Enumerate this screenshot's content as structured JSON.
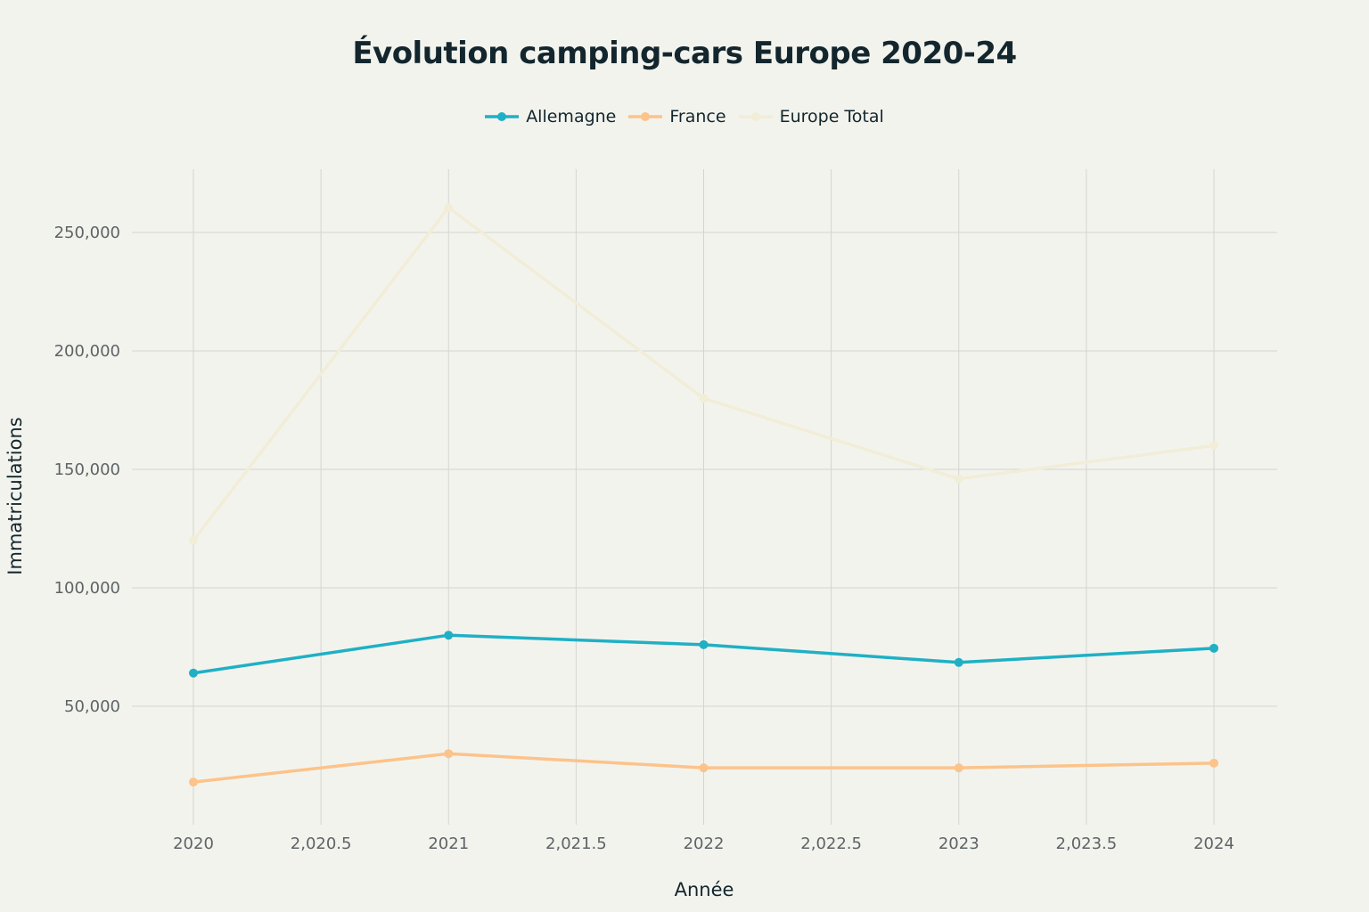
{
  "chart_data": {
    "type": "line",
    "title": "Évolution camping-cars Europe 2020-24",
    "xlabel": "Année",
    "ylabel": "Immatriculations",
    "x": [
      2020,
      2021,
      2022,
      2023,
      2024
    ],
    "xlim": [
      2019.75,
      2024.25
    ],
    "ylim": [
      0,
      277000
    ],
    "x_ticks": [
      "2020",
      "2,020.5",
      "2021",
      "2,021.5",
      "2022",
      "2,022.5",
      "2023",
      "2,023.5",
      "2024"
    ],
    "y_ticks": [
      "50,000",
      "100,000",
      "150,000",
      "200,000",
      "250,000"
    ],
    "grid": true,
    "legend_position": "top-center",
    "series": [
      {
        "name": "Allemagne",
        "color": "#1fb0c5",
        "values": [
          64000,
          80000,
          76000,
          68500,
          74500
        ]
      },
      {
        "name": "France",
        "color": "#fcc38a",
        "values": [
          18000,
          30000,
          24000,
          24000,
          26000
        ]
      },
      {
        "name": "Europe Total",
        "color": "#f1edd7",
        "values": [
          120000,
          260500,
          180000,
          146000,
          160000
        ]
      }
    ]
  }
}
